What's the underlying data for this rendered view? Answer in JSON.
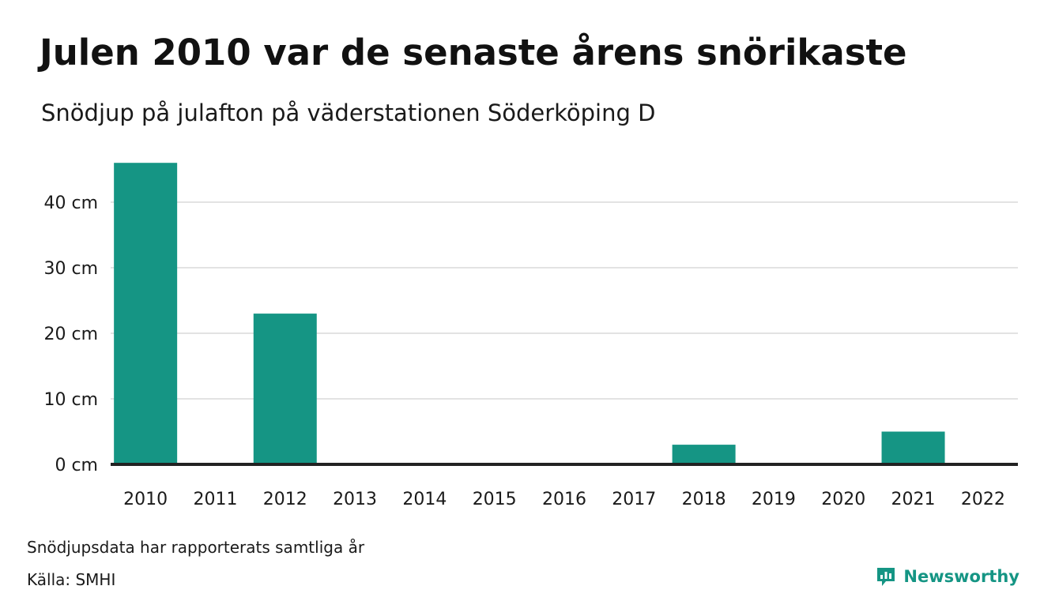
{
  "header": {
    "title": "Julen 2010 var de senaste årens snörikaste",
    "subtitle": "Snödjup på julafton på väderstationen Söderköping D"
  },
  "footer": {
    "note": "Snödjupsdata har rapporterats samtliga år",
    "source": "Källa: SMHI",
    "brand": "Newsworthy",
    "brand_icon": "newsworthy-logo-icon"
  },
  "colors": {
    "bar": "#159584",
    "grid": "#e3e3e3",
    "axis": "#222222"
  },
  "chart_data": {
    "type": "bar",
    "categories": [
      "2010",
      "2011",
      "2012",
      "2013",
      "2014",
      "2015",
      "2016",
      "2017",
      "2018",
      "2019",
      "2020",
      "2021",
      "2022"
    ],
    "values": [
      46,
      0,
      23,
      0,
      0,
      0,
      0,
      0,
      3,
      0,
      0,
      5,
      0
    ],
    "yticks": [
      0,
      10,
      20,
      30,
      40
    ],
    "ytick_labels": [
      "0 cm",
      "10 cm",
      "20 cm",
      "30 cm",
      "40 cm"
    ],
    "ylim": [
      0,
      46
    ],
    "grid": true,
    "legend": "none"
  }
}
